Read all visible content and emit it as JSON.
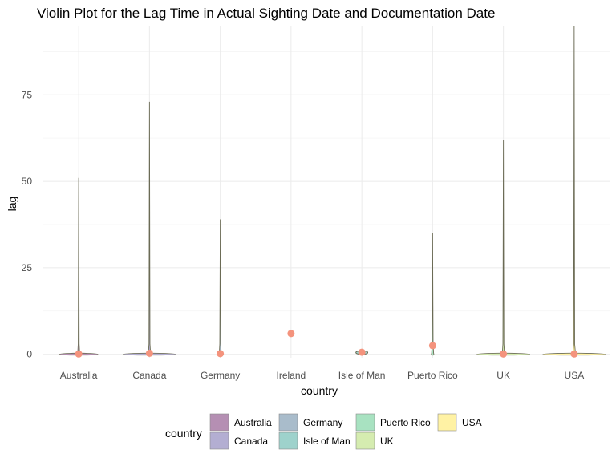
{
  "chart_data": {
    "type": "violin",
    "title": "Violin Plot for the Lag Time in Actual Sighting Date and Documentation Date",
    "xlabel": "country",
    "ylabel": "lag",
    "ylim": [
      -1,
      95
    ],
    "yticks": [
      0,
      25,
      50,
      75
    ],
    "grid": true,
    "legend_position": "bottom",
    "legend_title": "country",
    "categories": [
      "Australia",
      "Canada",
      "Germany",
      "Ireland",
      "Isle of Man",
      "Puerto Rico",
      "UK",
      "USA"
    ],
    "series": [
      {
        "name": "Australia",
        "color": "#b58fb3",
        "max": 51,
        "median": 0,
        "mean": 0.1
      },
      {
        "name": "Canada",
        "color": "#b3aed2",
        "max": 73,
        "median": 0,
        "mean": 0.3
      },
      {
        "name": "Germany",
        "color": "#a9bccb",
        "max": 39,
        "median": 0,
        "mean": 0.2
      },
      {
        "name": "Ireland",
        "color": "#9ed2cc",
        "max": 6,
        "median": 6,
        "mean": 6
      },
      {
        "name": "Isle of Man",
        "color": "#9ed2cc",
        "max": 1,
        "median": 0.5,
        "mean": 0.6
      },
      {
        "name": "Puerto Rico",
        "color": "#a8e2c1",
        "max": 35,
        "median": 0,
        "mean": 2.5
      },
      {
        "name": "UK",
        "color": "#d5ecb0",
        "max": 62,
        "median": 0,
        "mean": 0.1
      },
      {
        "name": "USA",
        "color": "#fff2a4",
        "max": 95,
        "median": 0,
        "mean": 0.1
      }
    ],
    "point_color": "#f4937d",
    "outline_color": "#6b6b55"
  }
}
